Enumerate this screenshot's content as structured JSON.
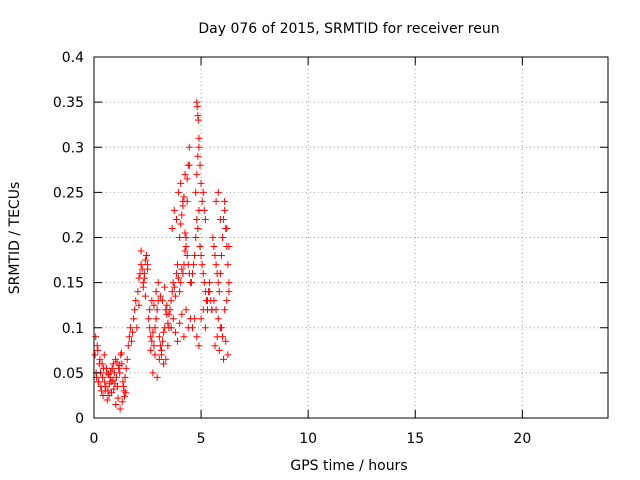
{
  "chart_data": {
    "type": "scatter",
    "title": "Day 076 of 2015, SRMTID for receiver reun",
    "xlabel": "GPS time / hours",
    "ylabel": "SRMTID / TECUs",
    "xlim": [
      0,
      24
    ],
    "ylim": [
      0,
      0.4
    ],
    "xticks": [
      0,
      5,
      10,
      15,
      20
    ],
    "xtick_labels": [
      "0",
      "5",
      "10",
      "15",
      "20"
    ],
    "yticks": [
      0,
      0.05,
      0.1,
      0.15,
      0.2,
      0.25,
      0.3,
      0.35,
      0.4
    ],
    "ytick_labels": [
      "0",
      "0.05",
      "0.1",
      "0.15",
      "0.2",
      "0.25",
      "0.3",
      "0.35",
      "0.4"
    ],
    "grid": true,
    "marker": "plus",
    "series": [
      {
        "name": "SRMTID",
        "color": "#ff0000",
        "x": [
          0.05,
          0.1,
          0.15,
          0.2,
          0.25,
          0.3,
          0.35,
          0.4,
          0.45,
          0.5,
          0.55,
          0.6,
          0.65,
          0.7,
          0.75,
          0.8,
          0.85,
          0.9,
          0.95,
          1.0,
          1.05,
          1.1,
          1.15,
          1.2,
          1.25,
          1.3,
          1.35,
          1.4,
          1.45,
          1.5,
          0.08,
          0.18,
          0.28,
          0.38,
          0.48,
          0.58,
          0.68,
          0.78,
          0.88,
          0.98,
          1.08,
          1.18,
          1.28,
          1.38,
          1.48,
          0.12,
          0.22,
          0.32,
          0.42,
          0.52,
          0.62,
          0.72,
          0.82,
          0.92,
          1.02,
          1.12,
          1.22,
          1.32,
          1.42,
          1.55,
          1.6,
          1.65,
          1.7,
          1.75,
          1.8,
          1.85,
          1.9,
          1.95,
          2.0,
          2.05,
          2.1,
          2.15,
          2.2,
          2.25,
          2.3,
          2.35,
          2.4,
          2.45,
          2.5,
          2.2,
          2.3,
          2.4,
          2.1,
          2.5,
          2.35,
          2.55,
          2.6,
          2.65,
          2.7,
          2.75,
          2.8,
          2.85,
          2.9,
          2.95,
          3.0,
          3.05,
          3.1,
          3.15,
          3.2,
          3.25,
          3.3,
          3.35,
          3.4,
          3.45,
          3.5,
          2.6,
          2.7,
          2.8,
          2.9,
          3.0,
          3.1,
          3.2,
          3.3,
          3.4,
          3.5,
          2.65,
          2.85,
          3.05,
          3.25,
          3.45,
          2.75,
          2.95,
          3.15,
          3.35,
          3.55,
          3.6,
          3.65,
          3.7,
          3.75,
          3.8,
          3.85,
          3.9,
          3.95,
          4.0,
          4.05,
          4.1,
          4.15,
          4.2,
          4.25,
          4.3,
          4.35,
          4.4,
          4.45,
          4.5,
          3.6,
          3.7,
          3.8,
          3.9,
          4.0,
          4.1,
          4.2,
          4.3,
          4.4,
          4.5,
          3.65,
          3.75,
          3.85,
          3.95,
          4.05,
          4.15,
          4.25,
          4.35,
          4.45,
          4.0,
          4.05,
          4.1,
          4.15,
          4.2,
          4.25,
          4.3,
          4.35,
          4.4,
          4.45,
          4.55,
          4.6,
          4.65,
          4.7,
          4.75,
          4.8,
          4.85,
          4.9,
          4.95,
          5.0,
          5.05,
          5.1,
          5.15,
          5.2,
          5.25,
          5.3,
          5.35,
          5.4,
          5.45,
          5.5,
          4.6,
          4.7,
          4.8,
          4.9,
          5.0,
          5.1,
          5.2,
          5.3,
          5.4,
          5.5,
          4.75,
          4.8,
          4.85,
          4.9,
          4.95,
          5.0,
          5.05,
          5.1,
          5.15,
          5.2,
          4.8,
          4.82,
          4.85,
          4.87,
          4.9,
          5.55,
          5.6,
          5.65,
          5.7,
          5.75,
          5.8,
          5.85,
          5.9,
          5.95,
          6.0,
          6.05,
          6.1,
          6.15,
          6.2,
          6.25,
          6.3,
          5.6,
          5.7,
          5.8,
          5.9,
          6.0,
          6.1,
          6.2,
          6.3,
          5.65,
          5.75,
          5.85,
          5.95,
          6.05,
          6.15,
          6.25,
          5.7,
          5.8,
          5.9,
          6.0,
          6.1,
          6.2,
          6.3
        ],
        "y": [
          0.07,
          0.05,
          0.08,
          0.04,
          0.06,
          0.05,
          0.03,
          0.045,
          0.055,
          0.04,
          0.035,
          0.05,
          0.03,
          0.025,
          0.045,
          0.04,
          0.055,
          0.06,
          0.05,
          0.065,
          0.045,
          0.035,
          0.055,
          0.05,
          0.07,
          0.06,
          0.04,
          0.03,
          0.045,
          0.055,
          0.09,
          0.075,
          0.065,
          0.06,
          0.07,
          0.055,
          0.048,
          0.052,
          0.042,
          0.038,
          0.062,
          0.058,
          0.072,
          0.035,
          0.028,
          0.045,
          0.04,
          0.035,
          0.025,
          0.03,
          0.02,
          0.038,
          0.028,
          0.032,
          0.015,
          0.022,
          0.01,
          0.018,
          0.024,
          0.065,
          0.08,
          0.09,
          0.1,
          0.085,
          0.095,
          0.11,
          0.12,
          0.13,
          0.1,
          0.14,
          0.155,
          0.16,
          0.17,
          0.165,
          0.15,
          0.16,
          0.175,
          0.18,
          0.165,
          0.185,
          0.145,
          0.135,
          0.125,
          0.17,
          0.155,
          0.11,
          0.1,
          0.09,
          0.085,
          0.095,
          0.08,
          0.1,
          0.11,
          0.12,
          0.13,
          0.09,
          0.08,
          0.07,
          0.085,
          0.095,
          0.1,
          0.12,
          0.115,
          0.105,
          0.1,
          0.12,
          0.13,
          0.125,
          0.14,
          0.15,
          0.135,
          0.13,
          0.145,
          0.125,
          0.115,
          0.075,
          0.07,
          0.065,
          0.06,
          0.08,
          0.05,
          0.045,
          0.075,
          0.065,
          0.12,
          0.13,
          0.14,
          0.15,
          0.145,
          0.135,
          0.16,
          0.17,
          0.155,
          0.14,
          0.15,
          0.165,
          0.16,
          0.17,
          0.185,
          0.2,
          0.18,
          0.17,
          0.16,
          0.15,
          0.1,
          0.11,
          0.095,
          0.085,
          0.105,
          0.115,
          0.09,
          0.12,
          0.1,
          0.11,
          0.21,
          0.23,
          0.22,
          0.25,
          0.26,
          0.24,
          0.27,
          0.265,
          0.28,
          0.2,
          0.215,
          0.225,
          0.235,
          0.245,
          0.205,
          0.19,
          0.24,
          0.28,
          0.3,
          0.15,
          0.16,
          0.17,
          0.18,
          0.2,
          0.22,
          0.21,
          0.23,
          0.19,
          0.18,
          0.17,
          0.16,
          0.15,
          0.14,
          0.13,
          0.12,
          0.14,
          0.15,
          0.13,
          0.12,
          0.1,
          0.11,
          0.09,
          0.08,
          0.11,
          0.12,
          0.1,
          0.13,
          0.14,
          0.12,
          0.25,
          0.27,
          0.29,
          0.3,
          0.28,
          0.26,
          0.24,
          0.25,
          0.23,
          0.22,
          0.35,
          0.345,
          0.335,
          0.33,
          0.31,
          0.2,
          0.19,
          0.18,
          0.17,
          0.16,
          0.15,
          0.14,
          0.16,
          0.18,
          0.2,
          0.22,
          0.24,
          0.21,
          0.19,
          0.17,
          0.15,
          0.13,
          0.12,
          0.11,
          0.1,
          0.09,
          0.12,
          0.13,
          0.14,
          0.08,
          0.09,
          0.075,
          0.1,
          0.065,
          0.085,
          0.07,
          0.24,
          0.25,
          0.22,
          0.2,
          0.23,
          0.21,
          0.19
        ]
      }
    ]
  }
}
